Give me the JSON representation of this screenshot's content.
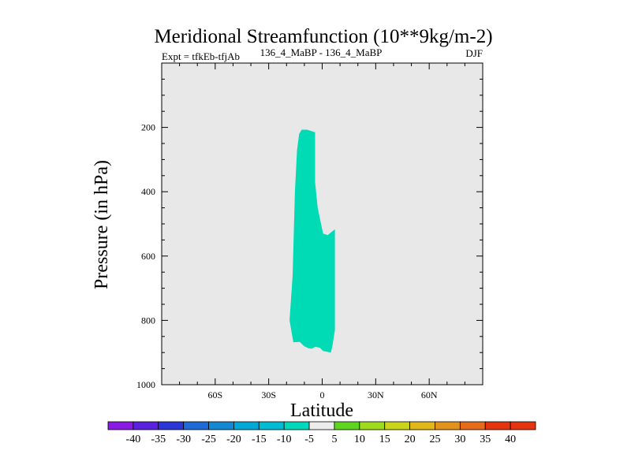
{
  "chart_data": {
    "type": "contour",
    "title": "Meridional Streamfunction (10**9kg/m-2)",
    "left_label": "Expt = tfkEb-tfjAb",
    "center_label": "136_4_MaBP - 136_4_MaBP",
    "right_label": "DJF",
    "xlabel": "Latitude",
    "ylabel": "Pressure (in hPa)",
    "xlim": [
      -90,
      90
    ],
    "ylim": [
      1000,
      0
    ],
    "x_ticks": [
      {
        "value": -60,
        "label": "60S"
      },
      {
        "value": -30,
        "label": "30S"
      },
      {
        "value": 0,
        "label": "0"
      },
      {
        "value": 30,
        "label": "30N"
      },
      {
        "value": 60,
        "label": "60N"
      }
    ],
    "y_ticks": [
      {
        "value": 200,
        "label": "200"
      },
      {
        "value": 400,
        "label": "400"
      },
      {
        "value": 600,
        "label": "600"
      },
      {
        "value": 800,
        "label": "800"
      },
      {
        "value": 1000,
        "label": "1000"
      }
    ],
    "background_color": "#e8e8e8",
    "filled_region": {
      "level_range": [
        -10,
        -5
      ],
      "color": "#00dbb5",
      "outline": [
        [
          -18.3,
          800
        ],
        [
          -16.6,
          660
        ],
        [
          -15.3,
          400
        ],
        [
          -14.1,
          270
        ],
        [
          -12.9,
          220
        ],
        [
          -11.5,
          207
        ],
        [
          -8.5,
          207
        ],
        [
          -4.0,
          215
        ],
        [
          -4.0,
          370
        ],
        [
          -2.5,
          450
        ],
        [
          0.5,
          530
        ],
        [
          3.1,
          535
        ],
        [
          5.2,
          525
        ],
        [
          7.1,
          517
        ],
        [
          7.1,
          830
        ],
        [
          5.7,
          880
        ],
        [
          4.8,
          900
        ],
        [
          3.1,
          898
        ],
        [
          0.5,
          895
        ],
        [
          -1.3,
          885
        ],
        [
          -3.9,
          882
        ],
        [
          -5.7,
          888
        ],
        [
          -7.5,
          887
        ],
        [
          -8.3,
          885
        ],
        [
          -10.2,
          880
        ],
        [
          -12.6,
          867
        ],
        [
          -16.2,
          868
        ]
      ]
    },
    "colorbar": {
      "labels": [
        "-40",
        "-35",
        "-30",
        "-25",
        "-20",
        "-15",
        "-10",
        "-5",
        "5",
        "10",
        "15",
        "20",
        "25",
        "30",
        "35",
        "40"
      ],
      "colors": [
        "#8a19e3",
        "#5c21e0",
        "#2b36d8",
        "#1f6ad6",
        "#1588d4",
        "#00a8d8",
        "#00bcd3",
        "#00d8bb",
        "#ececec",
        "#5ed620",
        "#9edb1c",
        "#cad41a",
        "#e0b81a",
        "#e3931c",
        "#e66c1a",
        "#e5350f"
      ]
    }
  }
}
